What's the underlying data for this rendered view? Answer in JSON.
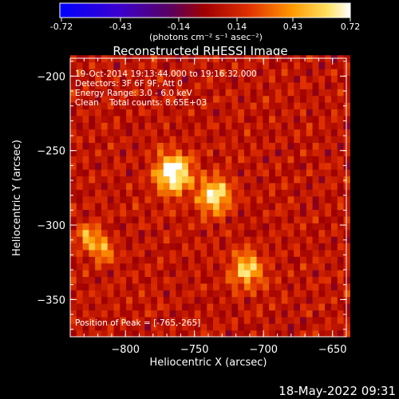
{
  "chart_data": {
    "type": "heatmap",
    "title": "Reconstructed RHESSI Image",
    "xlabel": "Heliocentric X (arcsec)",
    "ylabel": "Heliocentric Y (arcsec)",
    "xlim": [
      -840,
      -640
    ],
    "ylim": [
      -375,
      -188
    ],
    "xticks": [
      -800,
      -750,
      -700,
      -650
    ],
    "yticks": [
      -200,
      -250,
      -300,
      -350
    ],
    "colorbar": {
      "min": -0.72,
      "max": 0.72,
      "ticks": [
        "-0.72",
        "-0.43",
        "-0.14",
        "0.14",
        "0.43",
        "0.72"
      ],
      "unit_label": "(photons cm⁻² s⁻¹ asec⁻²)"
    },
    "sources": [
      {
        "x": -765,
        "y": -265,
        "peak": 0.72,
        "width": 9
      },
      {
        "x": -735,
        "y": -280,
        "peak": 0.58,
        "width": 8
      },
      {
        "x": -712,
        "y": -330,
        "peak": 0.5,
        "width": 8
      },
      {
        "x": -826,
        "y": -308,
        "peak": 0.42,
        "width": 6
      },
      {
        "x": -815,
        "y": -318,
        "peak": 0.38,
        "width": 5
      }
    ],
    "annotations": {
      "time_range": "19-Oct-2014 19:13:44.000 to 19:16:32.000",
      "detectors": "Detectors: 3F 6F 9F, Att 0",
      "energy_range": "Energy Range: 3.0 - 6.0 keV",
      "clean": "Clean    Total counts: 8.65E+03",
      "peak": "Position of Peak = [-765,-265]"
    }
  },
  "footer_timestamp": "18-May-2022 09:31"
}
